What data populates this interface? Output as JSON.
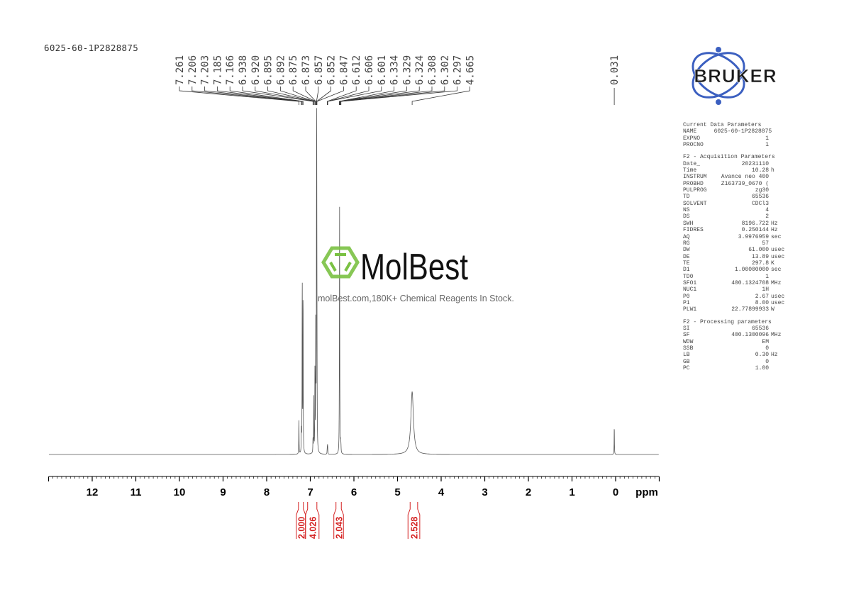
{
  "sample_name": "6025-60-1P2828875",
  "watermark": {
    "brand": "MolBest",
    "tagline": "molBest.com,180K+ Chemical Reagents In Stock.",
    "color": "#7ac143"
  },
  "logo": {
    "text": "BRUKER",
    "color": "#1f3a8a"
  },
  "parameters": {
    "current": {
      "title": "Current Data Parameters",
      "rows": [
        [
          "NAME",
          "6025-60-1P2828875",
          ""
        ],
        [
          "EXPNO",
          "1",
          ""
        ],
        [
          "PROCNO",
          "1",
          ""
        ]
      ]
    },
    "acquisition": {
      "title": "F2 - Acquisition Parameters",
      "rows": [
        [
          "Date_",
          "20231110",
          ""
        ],
        [
          "Time",
          "10.28",
          "h"
        ],
        [
          "INSTRUM",
          "Avance neo 400",
          ""
        ],
        [
          "PROBHD",
          "Z163739_0670 (",
          ""
        ],
        [
          "PULPROG",
          "zg30",
          ""
        ],
        [
          "TD",
          "65536",
          ""
        ],
        [
          "SOLVENT",
          "CDCl3",
          ""
        ],
        [
          "NS",
          "4",
          ""
        ],
        [
          "DS",
          "2",
          ""
        ],
        [
          "SWH",
          "8196.722",
          "Hz"
        ],
        [
          "FIDRES",
          "0.250144",
          "Hz"
        ],
        [
          "AQ",
          "3.9976959",
          "sec"
        ],
        [
          "RG",
          "57",
          ""
        ],
        [
          "DW",
          "61.000",
          "usec"
        ],
        [
          "DE",
          "13.89",
          "usec"
        ],
        [
          "TE",
          "297.8",
          "K"
        ],
        [
          "D1",
          "1.00000000",
          "sec"
        ],
        [
          "TD0",
          "1",
          ""
        ],
        [
          "SFO1",
          "400.1324708",
          "MHz"
        ],
        [
          "NUC1",
          "1H",
          ""
        ],
        [
          "P0",
          "2.67",
          "usec"
        ],
        [
          "P1",
          "8.00",
          "usec"
        ],
        [
          "PLW1",
          "22.77899933",
          "W"
        ]
      ]
    },
    "processing": {
      "title": "F2 - Processing parameters",
      "rows": [
        [
          "SI",
          "65536",
          ""
        ],
        [
          "SF",
          "400.1300096",
          "MHz"
        ],
        [
          "WDW",
          "EM",
          ""
        ],
        [
          "SSB",
          "0",
          ""
        ],
        [
          "LB",
          "0.30",
          "Hz"
        ],
        [
          "GB",
          "0",
          ""
        ],
        [
          "PC",
          "1.00",
          ""
        ]
      ]
    }
  },
  "chart_data": {
    "type": "line",
    "xlabel": "ppm",
    "xlim": [
      13,
      -1
    ],
    "x_ticks": [
      "12",
      "11",
      "10",
      "9",
      "8",
      "7",
      "6",
      "5",
      "4",
      "3",
      "2",
      "1",
      "0"
    ],
    "x_reversed": true,
    "grid": false,
    "peak_labels": [
      "7.261",
      "7.206",
      "7.203",
      "7.185",
      "7.166",
      "6.938",
      "6.920",
      "6.895",
      "6.892",
      "6.875",
      "6.873",
      "6.857",
      "6.852",
      "6.847",
      "6.612",
      "6.606",
      "6.601",
      "6.334",
      "6.329",
      "6.324",
      "6.308",
      "6.302",
      "6.297",
      "4.665"
    ],
    "isolated_peak_label": "0.031",
    "peaks": [
      {
        "ppm": 7.261,
        "intensity": 14
      },
      {
        "ppm": 7.206,
        "intensity": 5
      },
      {
        "ppm": 7.203,
        "intensity": 5
      },
      {
        "ppm": 7.185,
        "intensity": 74
      },
      {
        "ppm": 7.166,
        "intensity": 69
      },
      {
        "ppm": 6.938,
        "intensity": 6
      },
      {
        "ppm": 6.92,
        "intensity": 22
      },
      {
        "ppm": 6.895,
        "intensity": 20
      },
      {
        "ppm": 6.892,
        "intensity": 18
      },
      {
        "ppm": 6.875,
        "intensity": 28
      },
      {
        "ppm": 6.873,
        "intensity": 26
      },
      {
        "ppm": 6.857,
        "intensity": 80
      },
      {
        "ppm": 6.852,
        "intensity": 100
      },
      {
        "ppm": 6.847,
        "intensity": 30
      },
      {
        "ppm": 6.612,
        "intensity": 2
      },
      {
        "ppm": 6.606,
        "intensity": 3
      },
      {
        "ppm": 6.601,
        "intensity": 2
      },
      {
        "ppm": 6.334,
        "intensity": 10
      },
      {
        "ppm": 6.329,
        "intensity": 94
      },
      {
        "ppm": 6.324,
        "intensity": 10
      },
      {
        "ppm": 6.308,
        "intensity": 3
      },
      {
        "ppm": 6.302,
        "intensity": 3
      },
      {
        "ppm": 6.297,
        "intensity": 2
      },
      {
        "ppm": 4.665,
        "intensity": 25,
        "broad": true
      },
      {
        "ppm": 0.031,
        "intensity": 12
      }
    ],
    "integrals": [
      {
        "from": 7.32,
        "to": 7.11,
        "value": "2.000"
      },
      {
        "from": 7.11,
        "to": 6.8,
        "value": "4.026"
      },
      {
        "from": 6.46,
        "to": 6.24,
        "value": "2.043"
      },
      {
        "from": 4.76,
        "to": 4.49,
        "value": "2.528"
      }
    ],
    "colors": {
      "spectrum": "#555555",
      "integral": "#d42020",
      "axis": "#000000"
    }
  }
}
